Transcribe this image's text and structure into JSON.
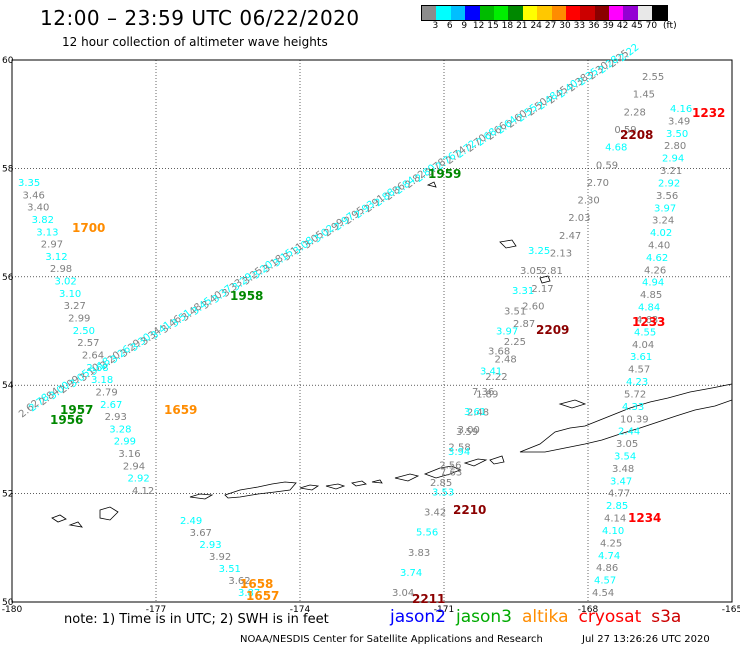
{
  "header": {
    "title": "12:00 – 23:59 UTC 06/22/2020",
    "subtitle": "12 hour collection of altimeter wave heights"
  },
  "colorbar": {
    "colors": [
      "#8c8c8c",
      "#00ffff",
      "#00bfff",
      "#0000ff",
      "#00bb00",
      "#00ee00",
      "#008800",
      "#ffff00",
      "#ffc800",
      "#ff8c00",
      "#ff0000",
      "#cc0000",
      "#8b0000",
      "#ff00ff",
      "#9400d3",
      "#e8e8e8",
      "#000000"
    ],
    "tick_labels": [
      "3",
      "6",
      "9",
      "12",
      "15",
      "18",
      "21",
      "24",
      "27",
      "30",
      "33",
      "36",
      "39",
      "42",
      "45",
      "70",
      "(ft)"
    ]
  },
  "map": {
    "lon_range": [
      -180,
      -165
    ],
    "lat_range": [
      50,
      60
    ],
    "lon_ticks": [
      "-180",
      "-177",
      "-174",
      "-171",
      "-168",
      "-165"
    ],
    "lat_ticks": [
      "50",
      "52",
      "54",
      "56",
      "58",
      "60"
    ],
    "tracks": [
      {
        "satellite": "jason3",
        "values": [
          "2.62",
          "2.78",
          "2.84",
          "3.00",
          "2.99",
          "3.05",
          "3.10",
          "3.18",
          "3.20",
          "3.26",
          "3.29",
          "3.30",
          "3.34",
          "3.41",
          "3.46",
          "3.51",
          "3.48",
          "3.45",
          "3.40",
          "3.37",
          "3.33",
          "3.29",
          "3.25",
          "3.20",
          "3.18",
          "3.15",
          "3.11",
          "3.08",
          "3.05",
          "3.02",
          "2.99",
          "2.97",
          "2.95",
          "2.93",
          "2.91",
          "2.88",
          "2.86",
          "2.84",
          "2.82",
          "2.80",
          "2.78",
          "2.76",
          "2.74",
          "2.72",
          "2.70",
          "2.68",
          "2.66",
          "2.64",
          "2.60",
          "2.55",
          "2.50",
          "2.48",
          "2.45",
          "2.40",
          "2.38",
          "2.35",
          "2.30",
          "2.28",
          "2.25",
          "2.22"
        ]
      },
      {
        "satellite": "altika",
        "values": [
          "3.35",
          "3.46",
          "3.40",
          "3.82",
          "3.13",
          "2.97",
          "3.12",
          "2.98",
          "3.02",
          "3.10",
          "3.27",
          "2.99",
          "2.50",
          "2.57",
          "2.64",
          "2.68",
          "3.18",
          "2.79",
          "2.67",
          "2.93",
          "3.28",
          "2.99",
          "3.16",
          "2.94",
          "2.92",
          "4.12"
        ]
      },
      {
        "satellite": "altika",
        "values": [
          "2.49",
          "3.67",
          "2.93",
          "3.92",
          "3.51",
          "3.62",
          "3.87"
        ]
      },
      {
        "satellite": "s3a",
        "values": [
          "2.55",
          "1.45",
          "2.28",
          "0.59",
          "4.68",
          "0.59",
          "2.70",
          "2.30",
          "2.03",
          "2.47",
          "2.13",
          "2.81",
          "2.17",
          "2.60",
          "2.87",
          "2.25",
          "2.48",
          "2.22",
          "1.89",
          "2.48",
          "3.00",
          "2.58",
          "2.56",
          "2.85"
        ]
      },
      {
        "satellite": "s3a",
        "values": [
          "3.25",
          "3.05",
          "3.31",
          "3.51",
          "3.97",
          "3.68",
          "3.41",
          "7.36",
          "3.61",
          "3.59",
          "3.94",
          "7.63",
          "3.53",
          "3.42",
          "5.56",
          "3.83",
          "3.74",
          "3.04"
        ]
      },
      {
        "satellite": "cryosat",
        "values": [
          "4.16",
          "3.49",
          "3.50",
          "2.80",
          "2.94",
          "3.21",
          "2.92",
          "3.56",
          "3.97",
          "3.24",
          "4.02",
          "4.40",
          "4.62",
          "4.26",
          "4.94",
          "4.85",
          "4.84",
          "4.63",
          "4.55",
          "4.04",
          "3.61",
          "4.57",
          "4.23",
          "5.72",
          "4.33",
          "10.39",
          "2.44",
          "3.05",
          "3.54",
          "3.48",
          "3.47",
          "4.77",
          "2.85",
          "4.14",
          "4.10",
          "4.25",
          "4.74",
          "4.86",
          "4.57",
          "4.54"
        ]
      }
    ],
    "time_labels": [
      {
        "text": "1700",
        "satellite": "altika"
      },
      {
        "text": "1659",
        "satellite": "altika"
      },
      {
        "text": "1658",
        "satellite": "altika"
      },
      {
        "text": "1657",
        "satellite": "altika"
      },
      {
        "text": "1959",
        "satellite": "jason3"
      },
      {
        "text": "1958",
        "satellite": "jason3"
      },
      {
        "text": "1957",
        "satellite": "jason3"
      },
      {
        "text": "1956",
        "satellite": "jason3"
      },
      {
        "text": "2208",
        "satellite": "s3a"
      },
      {
        "text": "2209",
        "satellite": "s3a"
      },
      {
        "text": "2210",
        "satellite": "s3a"
      },
      {
        "text": "2211",
        "satellite": "s3a"
      },
      {
        "text": "1232",
        "satellite": "cryosat"
      },
      {
        "text": "1233",
        "satellite": "cryosat"
      },
      {
        "text": "1234",
        "satellite": "cryosat"
      }
    ]
  },
  "footer": {
    "note": "note: 1) Time is in UTC; 2) SWH is in feet",
    "legend": [
      {
        "name": "jason2",
        "color": "#0000ff"
      },
      {
        "name": "jason3",
        "color": "#00aa00"
      },
      {
        "name": "altika",
        "color": "#ff8c00"
      },
      {
        "name": "cryosat",
        "color": "#ff0000"
      },
      {
        "name": "s3a",
        "color": "#cc0000"
      }
    ],
    "credit": "NOAA/NESDIS Center for Satellite Applications and Research",
    "timestamp": "Jul 27 13:26:26 UTC 2020"
  },
  "colors": {
    "jason3_values": "#00ffff",
    "default_values": "#808080",
    "jason3": "#008800",
    "altika": "#ff8c00",
    "s3a": "#8b0000",
    "cryosat": "#ff0000"
  }
}
